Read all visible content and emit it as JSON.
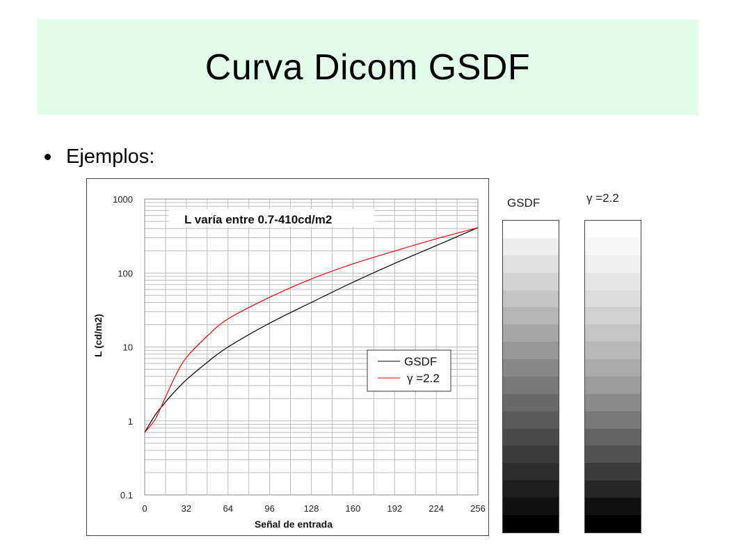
{
  "slide": {
    "title": "Curva Dicom GSDF",
    "bullet": "Ejemplos:"
  },
  "chart_data": {
    "type": "line",
    "title": "L varía entre 0.7-410cd/m2",
    "xlabel": "Señal de entrada",
    "ylabel": "L (cd/m2)",
    "xlim": [
      0,
      256
    ],
    "ylim": [
      0.1,
      1000
    ],
    "yscale": "log",
    "x_ticks": [
      "0",
      "32",
      "64",
      "96",
      "128",
      "160",
      "192",
      "224",
      "256"
    ],
    "y_ticks": [
      "0.1",
      "1",
      "10",
      "100",
      "1000"
    ],
    "grid": true,
    "legend": "center-right",
    "series": [
      {
        "name": "GSDF",
        "color": "#000000",
        "x": [
          0,
          8,
          16,
          24,
          32,
          48,
          64,
          96,
          128,
          160,
          192,
          224,
          256
        ],
        "y": [
          0.7,
          1.2,
          1.8,
          2.6,
          3.6,
          6.2,
          10,
          21,
          40,
          75,
          135,
          235,
          410
        ]
      },
      {
        "name": "γ =2.2",
        "color": "#ff0000",
        "x": [
          0,
          8,
          16,
          24,
          32,
          48,
          64,
          96,
          128,
          160,
          192,
          224,
          256
        ],
        "y": [
          0.7,
          1.05,
          2.1,
          4.2,
          7.2,
          14,
          24,
          47,
          83,
          133,
          198,
          290,
          410
        ]
      }
    ]
  },
  "ramps": {
    "gsdf_label": "GSDF",
    "gamma_label": "γ =2.2",
    "gsdf_shades": [
      "#fdfdfd",
      "#ededed",
      "#e0e0e0",
      "#d3d3d3",
      "#c4c4c4",
      "#b5b5b5",
      "#a6a6a6",
      "#979797",
      "#878787",
      "#787878",
      "#696969",
      "#5a5a5a",
      "#4b4b4b",
      "#3c3c3c",
      "#2d2d2d",
      "#1e1e1e",
      "#101010",
      "#000000"
    ],
    "gamma_shades": [
      "#fdfdfd",
      "#f6f6f6",
      "#efefef",
      "#e6e6e6",
      "#dcdcdc",
      "#d1d1d1",
      "#c5c5c5",
      "#b8b8b8",
      "#aaaaaa",
      "#9b9b9b",
      "#8a8a8a",
      "#787878",
      "#656565",
      "#515151",
      "#3c3c3c",
      "#262626",
      "#111111",
      "#000000"
    ]
  }
}
